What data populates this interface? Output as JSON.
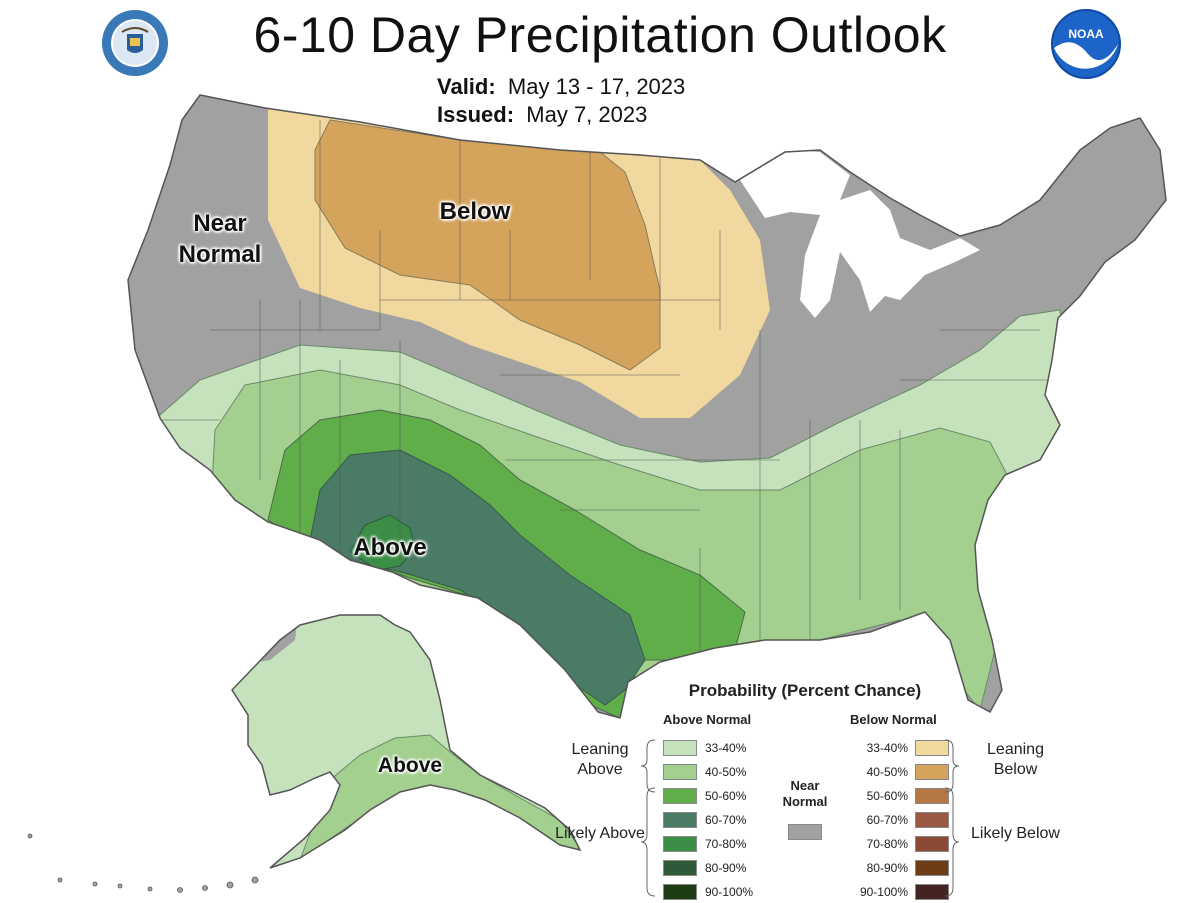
{
  "title": "6-10 Day Precipitation Outlook",
  "valid_label": "Valid:",
  "valid_value": "May 13 - 17, 2023",
  "issued_label": "Issued:",
  "issued_value": "May 7, 2023",
  "noaa_logo_text": "NOAA",
  "region_labels": {
    "near_normal": "Near Normal",
    "below": "Below",
    "above_texas": "Above",
    "above_alaska": "Above"
  },
  "legend": {
    "title": "Probability (Percent Chance)",
    "above_header": "Above Normal",
    "below_header": "Below Normal",
    "near_label": "Near Normal",
    "leaning_above": "Leaning Above",
    "likely_above": "Likely Above",
    "leaning_below": "Leaning Below",
    "likely_below": "Likely Below",
    "near_color": "#a1a1a1",
    "above": [
      {
        "pct": "33-40%",
        "color": "#c5e2bc"
      },
      {
        "pct": "40-50%",
        "color": "#a3d08f"
      },
      {
        "pct": "50-60%",
        "color": "#60ae4a"
      },
      {
        "pct": "60-70%",
        "color": "#4a7b65"
      },
      {
        "pct": "70-80%",
        "color": "#3c8e47"
      },
      {
        "pct": "80-90%",
        "color": "#2e5a3a"
      },
      {
        "pct": "90-100%",
        "color": "#1f3d14"
      }
    ],
    "below": [
      {
        "pct": "33-40%",
        "color": "#f0d89e"
      },
      {
        "pct": "40-50%",
        "color": "#d5a45c"
      },
      {
        "pct": "50-60%",
        "color": "#b57845"
      },
      {
        "pct": "60-70%",
        "color": "#9a5a42"
      },
      {
        "pct": "70-80%",
        "color": "#8a4a35"
      },
      {
        "pct": "80-90%",
        "color": "#6e3d15"
      },
      {
        "pct": "90-100%",
        "color": "#442422"
      }
    ]
  }
}
